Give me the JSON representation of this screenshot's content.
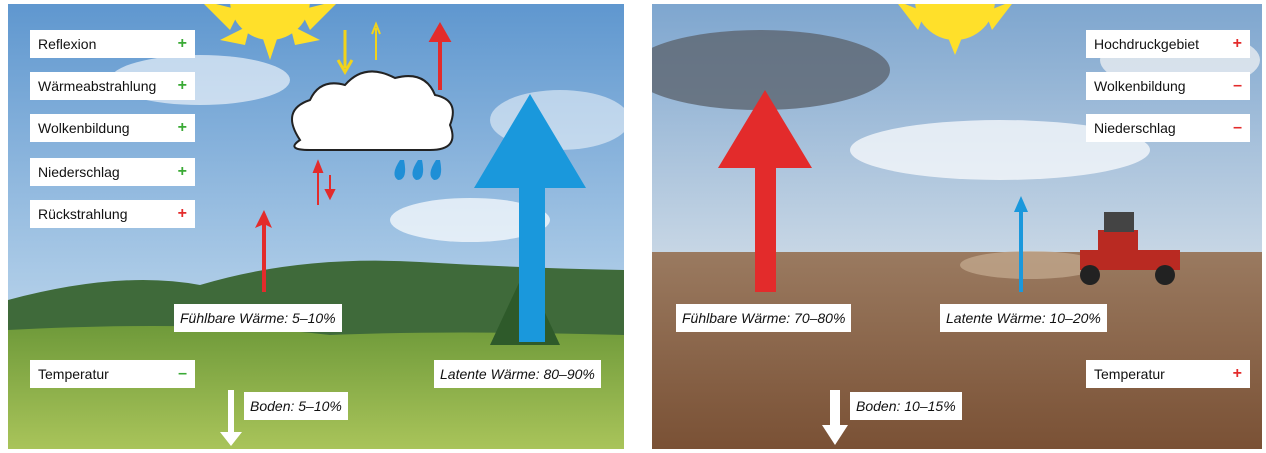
{
  "panels": [
    {
      "boxes": [
        {
          "label": "Reflexion",
          "sign": "+",
          "sign_color": "#3aaa35"
        },
        {
          "label": "Wärmeabstrahlung",
          "sign": "+",
          "sign_color": "#3aaa35"
        },
        {
          "label": "Wolkenbildung",
          "sign": "+",
          "sign_color": "#3aaa35"
        },
        {
          "label": "Niederschlag",
          "sign": "+",
          "sign_color": "#3aaa35"
        },
        {
          "label": "Rückstrahlung",
          "sign": "+",
          "sign_color": "#e32b2b"
        }
      ],
      "temperature": {
        "label": "Temperatur",
        "sign": "–",
        "sign_color": "#3aaa35"
      },
      "fluxes": {
        "sensible": "Fühlbare Wärme: 5–10%",
        "latent": "Latente Wärme: 80–90%",
        "ground": "Boden: 5–10%"
      }
    },
    {
      "boxes": [
        {
          "label": "Hochdruckgebiet",
          "sign": "+",
          "sign_color": "#e32b2b"
        },
        {
          "label": "Wolkenbildung",
          "sign": "–",
          "sign_color": "#e32b2b"
        },
        {
          "label": "Niederschlag",
          "sign": "–",
          "sign_color": "#e32b2b"
        }
      ],
      "temperature": {
        "label": "Temperatur",
        "sign": "+",
        "sign_color": "#e32b2b"
      },
      "fluxes": {
        "sensible": "Fühlbare Wärme: 70–80%",
        "latent": "Latente Wärme: 10–20%",
        "ground": "Boden: 10–15%"
      }
    }
  ]
}
